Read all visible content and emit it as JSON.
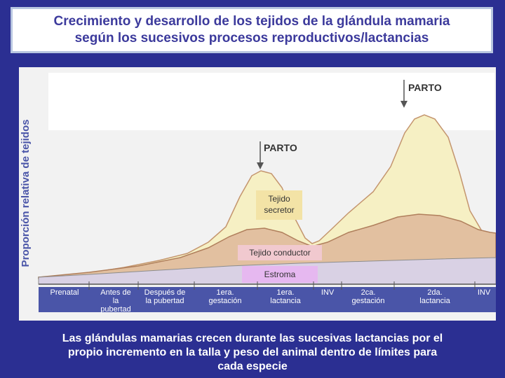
{
  "title": {
    "line1": "Crecimiento y desarrollo de los tejidos de la glándula mamaria",
    "line2": "según los sucesivos procesos reproductivos/lactancias"
  },
  "figure": {
    "ylabel": "Proporción relativa de tejidos",
    "annotations": {
      "parto_1": "PARTO",
      "parto_2": "PARTO"
    },
    "regions": {
      "secretor": [
        "Tejido",
        "secretor"
      ],
      "conductor": "Tejido conductor",
      "estroma": "Estroma"
    },
    "stages": [
      [
        "Prenatal"
      ],
      [
        "Antes de",
        "la",
        "pubertad"
      ],
      [
        "Después de",
        "la pubertad"
      ],
      [
        "1era.",
        "gestación"
      ],
      [
        "1era.",
        "lactancia"
      ],
      [
        "INV"
      ],
      [
        "2ca.",
        "gestación"
      ],
      [
        "2da.",
        "lactancia"
      ],
      [
        "INV"
      ]
    ],
    "colors": {
      "secretor": "#f6f0c4",
      "conductor": "#e2c0a0",
      "estroma": "#d9d1e4",
      "label_bar": "#4a55a8"
    }
  },
  "caption": {
    "line1": "Las glándulas mamarias crecen durante las sucesivas lactancias por el",
    "line2": "propio incremento en la talla y peso del animal dentro de límites para",
    "line3": "cada especie"
  }
}
